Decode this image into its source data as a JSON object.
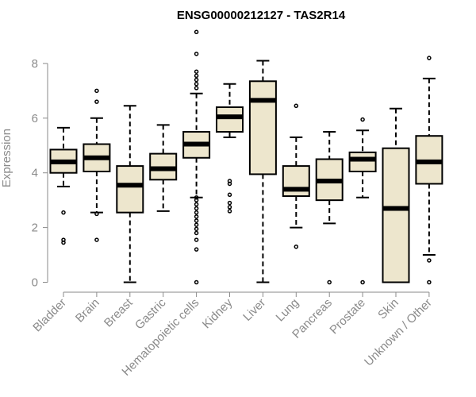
{
  "chart_data": {
    "type": "box",
    "title": "ENSG00000212127 - TAS2R14",
    "xlabel": "",
    "ylabel": "Expression",
    "ylim": [
      0,
      9.2
    ],
    "yticks": [
      0,
      2,
      4,
      6,
      8
    ],
    "categories": [
      "Bladder",
      "Brain",
      "Breast",
      "Gastric",
      "Hematopoietic cells",
      "Kidney",
      "Liver",
      "Lung",
      "Pancreas",
      "Prostate",
      "Skin",
      "Unknown / Other"
    ],
    "box_fill": "#ede6cd",
    "stroke": "#000000",
    "boxes": [
      {
        "whisker_low": 3.5,
        "q1": 4.0,
        "median": 4.4,
        "q3": 4.85,
        "whisker_high": 5.65,
        "outliers": [
          2.55,
          1.55,
          1.45
        ]
      },
      {
        "whisker_low": 2.55,
        "q1": 4.05,
        "median": 4.55,
        "q3": 5.05,
        "whisker_high": 6.0,
        "outliers": [
          7.0,
          6.6,
          2.5,
          1.55
        ]
      },
      {
        "whisker_low": 0.0,
        "q1": 2.55,
        "median": 3.55,
        "q3": 4.25,
        "whisker_high": 6.45,
        "outliers": []
      },
      {
        "whisker_low": 2.6,
        "q1": 3.75,
        "median": 4.15,
        "q3": 4.7,
        "whisker_high": 5.75,
        "outliers": []
      },
      {
        "whisker_low": 3.1,
        "q1": 4.55,
        "median": 5.05,
        "q3": 5.5,
        "whisker_high": 6.9,
        "outliers": [
          9.15,
          8.35,
          7.7,
          7.55,
          7.4,
          7.25,
          7.1,
          3.1,
          3.0,
          2.85,
          2.7,
          2.55,
          2.4,
          2.25,
          2.1,
          1.95,
          1.8,
          1.55,
          1.2,
          0.0
        ]
      },
      {
        "whisker_low": 5.3,
        "q1": 5.5,
        "median": 6.05,
        "q3": 6.4,
        "whisker_high": 7.25,
        "outliers": [
          3.7,
          3.6,
          3.2,
          2.9,
          2.75,
          2.6
        ]
      },
      {
        "whisker_low": 0.0,
        "q1": 3.95,
        "median": 6.65,
        "q3": 7.35,
        "whisker_high": 8.1,
        "outliers": []
      },
      {
        "whisker_low": 2.0,
        "q1": 3.15,
        "median": 3.4,
        "q3": 4.25,
        "whisker_high": 5.3,
        "outliers": [
          6.45,
          1.3
        ]
      },
      {
        "whisker_low": 2.15,
        "q1": 3.0,
        "median": 3.7,
        "q3": 4.5,
        "whisker_high": 5.5,
        "outliers": [
          0.0
        ]
      },
      {
        "whisker_low": 3.1,
        "q1": 4.05,
        "median": 4.5,
        "q3": 4.75,
        "whisker_high": 5.55,
        "outliers": [
          5.95,
          0.0
        ]
      },
      {
        "whisker_low": 0.0,
        "q1": 0.0,
        "median": 2.7,
        "q3": 4.9,
        "whisker_high": 6.35,
        "outliers": []
      },
      {
        "whisker_low": 1.0,
        "q1": 3.6,
        "median": 4.4,
        "q3": 5.35,
        "whisker_high": 7.45,
        "outliers": [
          8.2,
          0.8,
          0.0
        ]
      }
    ]
  }
}
